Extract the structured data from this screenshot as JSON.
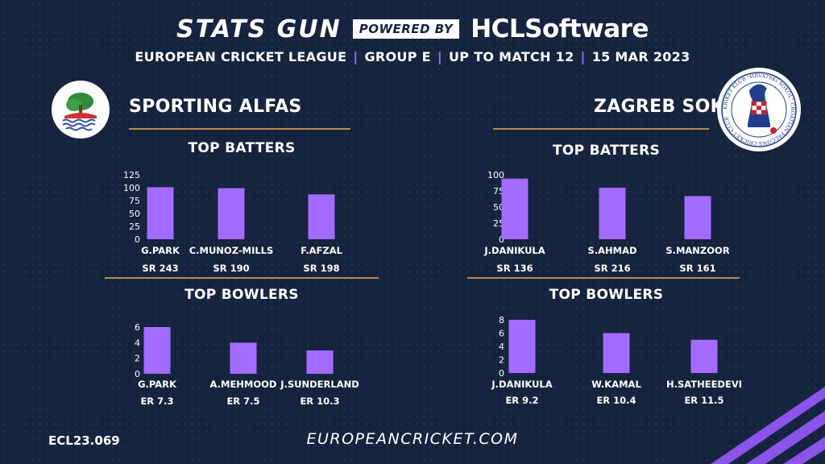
{
  "header": {
    "brand": "STATS GUN",
    "powered_by": "POWERED BY",
    "sponsor": "HCLSoftware",
    "subtitle": {
      "league": "EUROPEAN CRICKET LEAGUE",
      "group": "GROUP  E",
      "match": "UP TO MATCH  12",
      "date": "15 MAR 2023"
    }
  },
  "teams": {
    "left": {
      "name": "SPORTING ALFAS",
      "logo_icon": "tree-over-water-logo"
    },
    "right": {
      "name": "ZAGREB SOKOL",
      "logo_icon": "falcon-crest-logo",
      "logo_text": "KRIKET KLUB \"HRVATSKI SOKOL\"  CROATIAN FALCONS  CRICKET CLUB"
    }
  },
  "labels": {
    "top_batters": "TOP BATTERS",
    "top_bowlers": "TOP BOWLERS"
  },
  "colors": {
    "bar": "#a36bff",
    "accent_line": "#b58f45",
    "separator": "#9b6cf5"
  },
  "chart_data": [
    {
      "id": "left-batters",
      "type": "bar",
      "title": "TOP BATTERS",
      "categories": [
        "G.PARK",
        "C.MUNOZ-MILLS",
        "F.AFZAL"
      ],
      "values": [
        101,
        99,
        87
      ],
      "annotations": [
        "SR 243",
        "SR 190",
        "SR 198"
      ],
      "ylim": [
        0,
        125
      ],
      "yticks": [
        0,
        25,
        50,
        75,
        100,
        125
      ],
      "grid": false
    },
    {
      "id": "left-bowlers",
      "type": "bar",
      "title": "TOP BOWLERS",
      "categories": [
        "G.PARK",
        "A.MEHMOOD",
        "J.SUNDERLAND"
      ],
      "values": [
        6,
        4,
        3
      ],
      "annotations": [
        "ER 7.3",
        "ER 7.5",
        "ER 10.3"
      ],
      "ylim": [
        0,
        6
      ],
      "yticks": [
        0,
        2,
        4,
        6
      ],
      "grid": false
    },
    {
      "id": "right-batters",
      "type": "bar",
      "title": "TOP BATTERS",
      "categories": [
        "J.DANIKULA",
        "S.AHMAD",
        "S.MANZOOR"
      ],
      "values": [
        94,
        80,
        67
      ],
      "annotations": [
        "SR 136",
        "SR 216",
        "SR 161"
      ],
      "ylim": [
        0,
        100
      ],
      "yticks": [
        0,
        25,
        50,
        75,
        100
      ],
      "grid": false
    },
    {
      "id": "right-bowlers",
      "type": "bar",
      "title": "TOP BOWLERS",
      "categories": [
        "J.DANIKULA",
        "W.KAMAL",
        "H.SATHEEDEVI"
      ],
      "values": [
        8,
        6,
        5
      ],
      "annotations": [
        "ER  9.2",
        "ER 10.4",
        "ER 11.5"
      ],
      "ylim": [
        0,
        8
      ],
      "yticks": [
        0,
        2,
        4,
        6,
        8
      ],
      "grid": false
    }
  ],
  "footer": {
    "code": "ECL23.069",
    "url": "EUROPEANCRICKET.COM"
  }
}
